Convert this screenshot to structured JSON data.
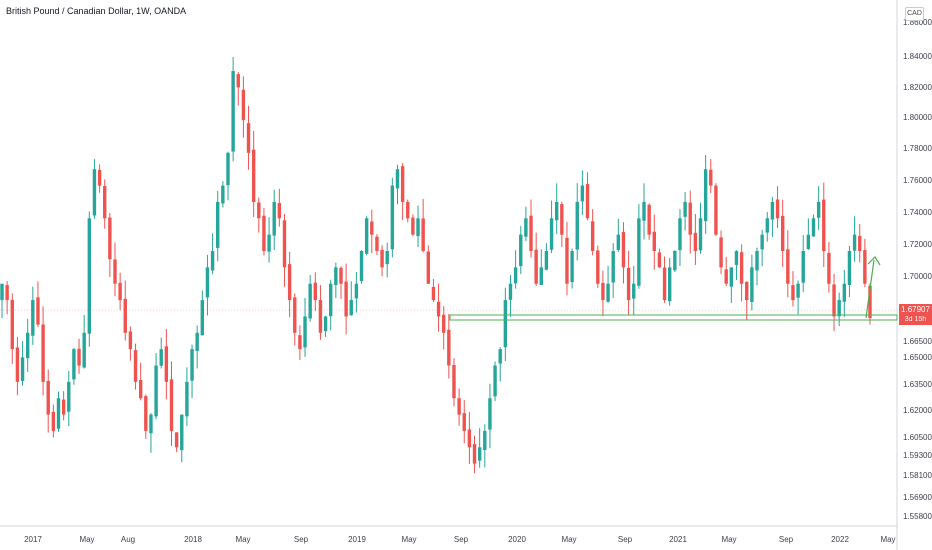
{
  "header": {
    "title": "British Pound / Canadian Dollar, 1W, OANDA",
    "currency": "CAD"
  },
  "price_tag": {
    "price": "1.67907",
    "countdown": "3d 15h"
  },
  "colors": {
    "up": "#26a69a",
    "down": "#ef5350",
    "support": "#4caf50",
    "arrow": "#4caf50",
    "grid": "#f0f3fa"
  },
  "chart_data": {
    "type": "candlestick",
    "title": "British Pound / Canadian Dollar, 1W, OANDA",
    "ylim": [
      1.558,
      1.86
    ],
    "y_ticks": [
      "1.86000",
      "1.84000",
      "1.82000",
      "1.80000",
      "1.78000",
      "1.76000",
      "1.74000",
      "1.72000",
      "1.70000",
      "1.68000",
      "1.66500",
      "1.65000",
      "1.63500",
      "1.62000",
      "1.60500",
      "1.59300",
      "1.58100",
      "1.56900",
      "1.55800"
    ],
    "x_ticks": [
      "2017",
      "May",
      "Aug",
      "2018",
      "May",
      "Sep",
      "2019",
      "May",
      "Sep",
      "2020",
      "May",
      "Sep",
      "2021",
      "May",
      "Sep",
      "2022",
      "May"
    ],
    "last_price": 1.67907,
    "support_zone": [
      1.672,
      1.676
    ],
    "weekly_close_path": [
      1.7,
      1.69,
      1.66,
      1.64,
      1.655,
      1.67,
      1.69,
      1.675,
      1.64,
      1.62,
      1.61,
      1.63,
      1.62,
      1.64,
      1.66,
      1.65,
      1.67,
      1.74,
      1.77,
      1.76,
      1.74,
      1.715,
      1.7,
      1.69,
      1.67,
      1.66,
      1.64,
      1.63,
      1.61,
      1.62,
      1.65,
      1.66,
      1.64,
      1.61,
      1.6,
      1.62,
      1.64,
      1.66,
      1.67,
      1.69,
      1.71,
      1.72,
      1.75,
      1.76,
      1.78,
      1.83,
      1.82,
      1.8,
      1.78,
      1.75,
      1.74,
      1.72,
      1.73,
      1.75,
      1.74,
      1.71,
      1.69,
      1.67,
      1.66,
      1.68,
      1.7,
      1.69,
      1.67,
      1.68,
      1.7,
      1.71,
      1.7,
      1.68,
      1.69,
      1.7,
      1.72,
      1.74,
      1.73,
      1.72,
      1.71,
      1.72,
      1.76,
      1.77,
      1.75,
      1.74,
      1.73,
      1.74,
      1.72,
      1.7,
      1.69,
      1.68,
      1.67,
      1.65,
      1.63,
      1.62,
      1.61,
      1.6,
      1.59,
      1.6,
      1.61,
      1.63,
      1.65,
      1.66,
      1.69,
      1.7,
      1.71,
      1.73,
      1.74,
      1.72,
      1.7,
      1.71,
      1.72,
      1.74,
      1.75,
      1.73,
      1.7,
      1.72,
      1.75,
      1.76,
      1.74,
      1.72,
      1.7,
      1.69,
      1.7,
      1.72,
      1.73,
      1.71,
      1.69,
      1.7,
      1.74,
      1.75,
      1.73,
      1.72,
      1.71,
      1.69,
      1.71,
      1.72,
      1.74,
      1.75,
      1.73,
      1.72,
      1.74,
      1.77,
      1.76,
      1.73,
      1.71,
      1.7,
      1.71,
      1.72,
      1.7,
      1.69,
      1.71,
      1.72,
      1.73,
      1.74,
      1.75,
      1.74,
      1.72,
      1.7,
      1.69,
      1.7,
      1.72,
      1.73,
      1.74,
      1.75,
      1.72,
      1.7,
      1.68,
      1.69,
      1.7,
      1.72,
      1.73,
      1.72,
      1.7,
      1.679
    ]
  }
}
